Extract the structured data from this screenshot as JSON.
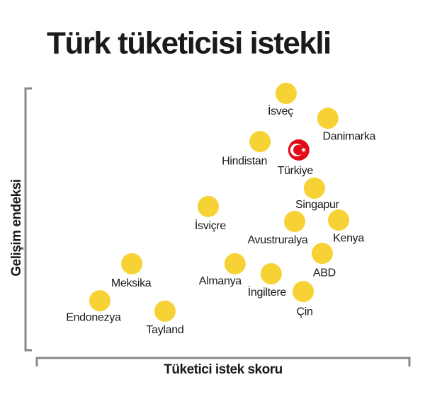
{
  "chart_data": {
    "type": "scatter",
    "title": "Türk tüketicisi istekli",
    "x_label": "Tüketici istek skoru",
    "y_label": "Gelişim endeksi",
    "categories": [
      "İsveç",
      "Danimarka",
      "Hindistan",
      "Türkiye",
      "Singapur",
      "İsviçre",
      "Avustruralya",
      "Kenya",
      "ABD",
      "Meksika",
      "Almanya",
      "İngiltere",
      "Çin",
      "Endonezya",
      "Tayland"
    ],
    "x": [
      66.9,
      78.1,
      59.9,
      70.3,
      74.5,
      46.0,
      69.2,
      81.0,
      76.6,
      25.5,
      53.2,
      62.9,
      71.5,
      16.9,
      34.4
    ],
    "values": [
      98.1,
      88.6,
      79.7,
      76.5,
      61.9,
      54.9,
      49.2,
      49.7,
      37.0,
      33.0,
      33.0,
      29.2,
      22.4,
      18.9,
      14.9
    ],
    "color": "#f6d235",
    "point_colors": [
      "#f6d235",
      "#f6d235",
      "#f6d235",
      "#e30a17",
      "#f6d235",
      "#f6d235",
      "#f6d235",
      "#f6d235",
      "#f6d235",
      "#f6d235",
      "#f6d235",
      "#f6d235",
      "#f6d235",
      "#f6d235",
      "#f6d235"
    ],
    "xlim": [
      0,
      100
    ],
    "ylim": [
      0,
      100
    ]
  }
}
